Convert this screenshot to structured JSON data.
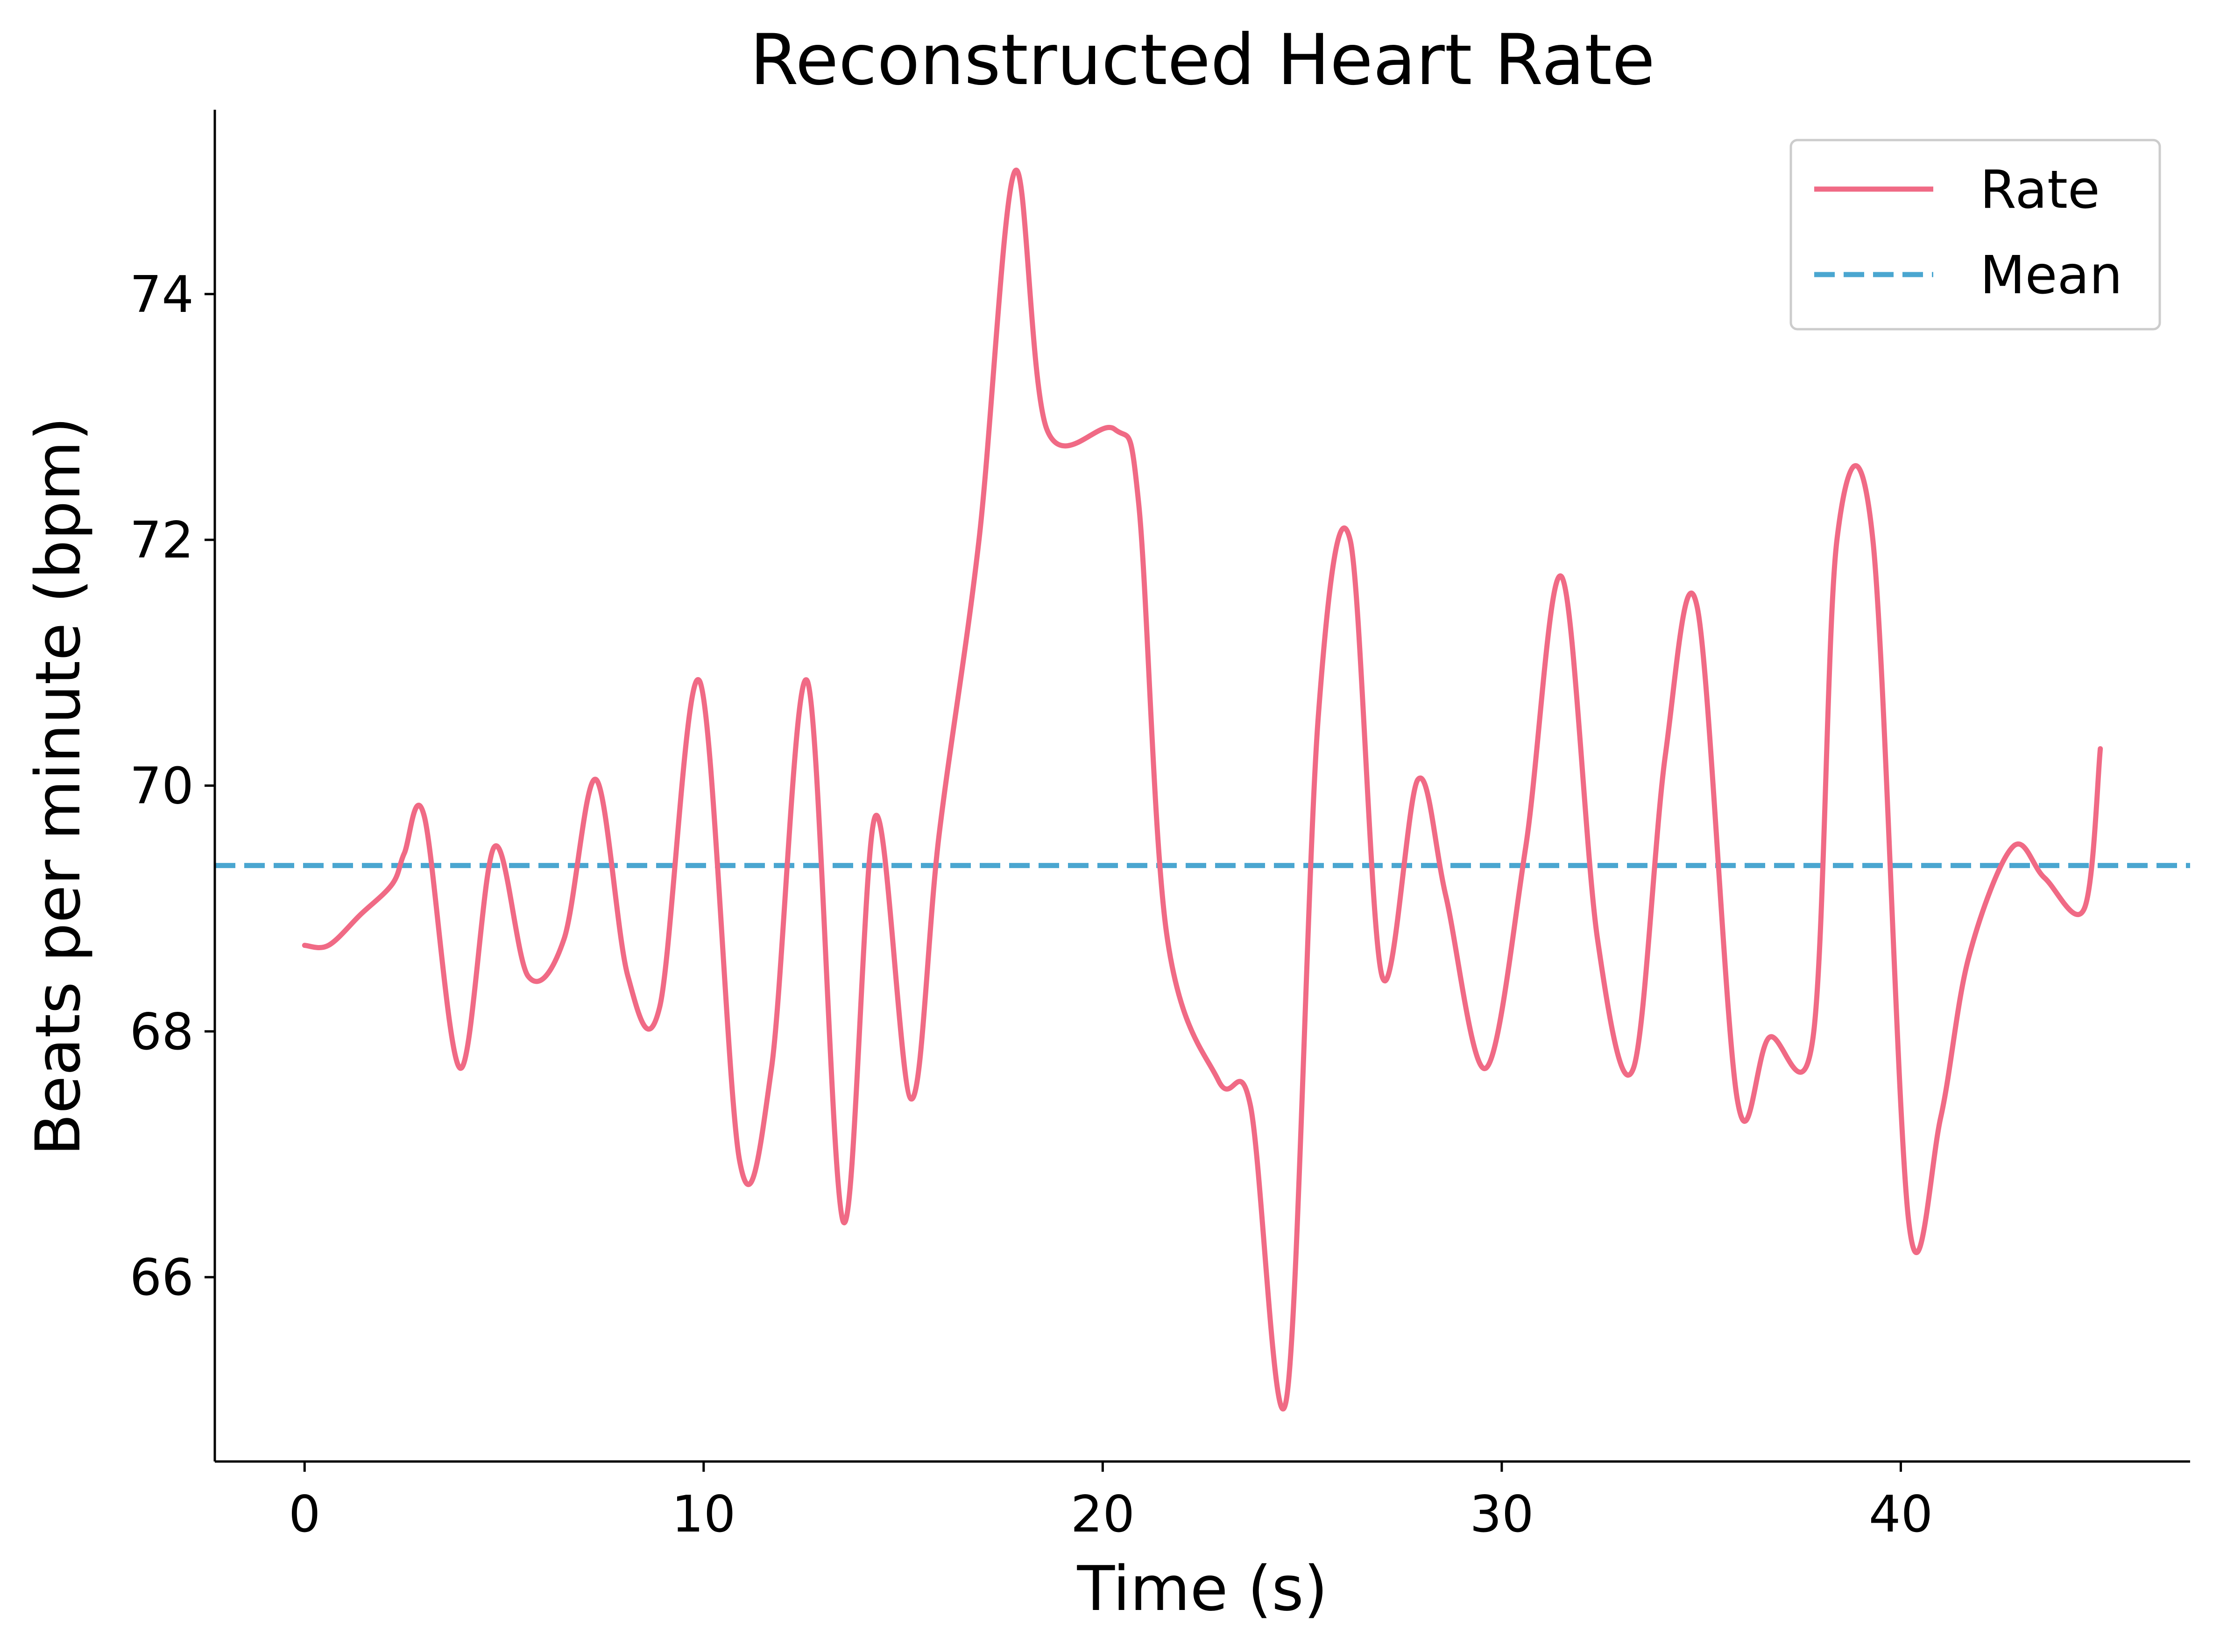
{
  "chart_data": {
    "type": "line",
    "title": "Reconstructed Heart Rate",
    "xlabel": "Time (s)",
    "ylabel": "Beats per minute (bpm)",
    "xlim": [
      -2.25,
      47.25
    ],
    "ylim": [
      64.5,
      75.5
    ],
    "xticks": [
      0,
      10,
      20,
      30,
      40
    ],
    "yticks": [
      66,
      68,
      70,
      72,
      74
    ],
    "grid": false,
    "legend_position": "top-right",
    "series": [
      {
        "name": "Rate",
        "color": "#f06a85",
        "style": "solid",
        "points": [
          [
            0.0,
            68.7
          ],
          [
            0.6,
            68.7
          ],
          [
            1.4,
            68.95
          ],
          [
            2.2,
            69.2
          ],
          [
            2.5,
            69.45
          ],
          [
            3.0,
            69.75
          ],
          [
            3.9,
            67.7
          ],
          [
            4.75,
            69.5
          ],
          [
            5.6,
            68.45
          ],
          [
            6.5,
            68.75
          ],
          [
            7.3,
            70.05
          ],
          [
            8.1,
            68.45
          ],
          [
            8.9,
            68.2
          ],
          [
            9.9,
            70.85
          ],
          [
            10.9,
            66.95
          ],
          [
            11.7,
            67.7
          ],
          [
            12.6,
            70.85
          ],
          [
            13.5,
            66.45
          ],
          [
            14.3,
            69.75
          ],
          [
            15.2,
            67.45
          ],
          [
            15.9,
            69.6
          ],
          [
            16.9,
            72.0
          ],
          [
            17.8,
            75.0
          ],
          [
            18.6,
            72.9
          ],
          [
            20.3,
            72.9
          ],
          [
            20.9,
            72.3
          ],
          [
            21.6,
            68.8
          ],
          [
            22.9,
            67.6
          ],
          [
            23.7,
            67.4
          ],
          [
            24.6,
            65.0
          ],
          [
            25.4,
            70.55
          ],
          [
            26.2,
            72.0
          ],
          [
            27.0,
            68.45
          ],
          [
            27.9,
            70.05
          ],
          [
            28.6,
            69.1
          ],
          [
            29.6,
            67.7
          ],
          [
            30.6,
            69.5
          ],
          [
            31.5,
            71.7
          ],
          [
            32.4,
            68.75
          ],
          [
            33.3,
            67.7
          ],
          [
            34.1,
            70.25
          ],
          [
            34.9,
            71.45
          ],
          [
            35.9,
            67.45
          ],
          [
            36.7,
            67.95
          ],
          [
            37.8,
            67.95
          ],
          [
            38.4,
            72.0
          ],
          [
            39.3,
            72.0
          ],
          [
            40.2,
            66.45
          ],
          [
            41.0,
            67.3
          ],
          [
            41.7,
            68.6
          ],
          [
            42.8,
            69.5
          ],
          [
            43.6,
            69.25
          ],
          [
            44.6,
            69.0
          ],
          [
            45.0,
            70.3
          ]
        ]
      },
      {
        "name": "Mean",
        "color": "#4aa6d0",
        "style": "dashed",
        "y": 69.35
      }
    ]
  }
}
